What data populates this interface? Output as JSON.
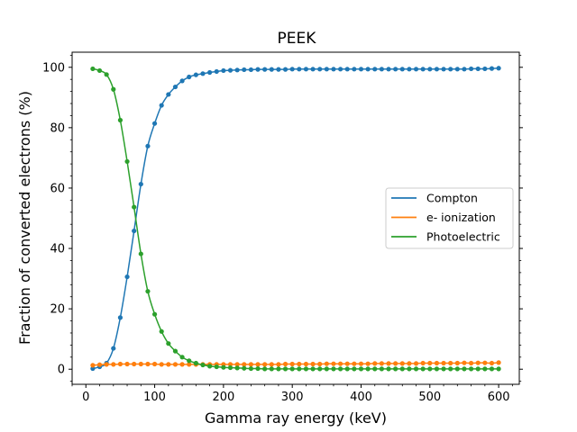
{
  "chart_data": {
    "type": "line",
    "title": "PEEK",
    "xlabel": "Gamma ray energy (keV)",
    "ylabel": "Fraction of converted electrons (%)",
    "xlim": [
      -20,
      630
    ],
    "ylim": [
      -5,
      105
    ],
    "xticks": [
      0,
      100,
      200,
      300,
      400,
      500,
      600
    ],
    "yticks": [
      0,
      20,
      40,
      60,
      80,
      100
    ],
    "grid": false,
    "legend_position": "center-right",
    "x": [
      10,
      20,
      30,
      40,
      50,
      60,
      70,
      80,
      90,
      100,
      110,
      120,
      130,
      140,
      150,
      160,
      170,
      180,
      190,
      200,
      210,
      220,
      230,
      240,
      250,
      260,
      270,
      280,
      290,
      300,
      310,
      320,
      330,
      340,
      350,
      360,
      370,
      380,
      390,
      400,
      410,
      420,
      430,
      440,
      450,
      460,
      470,
      480,
      490,
      500,
      510,
      520,
      530,
      540,
      550,
      560,
      570,
      580,
      590,
      600
    ],
    "series": [
      {
        "name": "Compton",
        "color": "#1f77b4",
        "values": [
          0.2,
          0.8,
          2.0,
          6.9,
          17.1,
          30.6,
          45.8,
          61.3,
          73.9,
          81.4,
          87.4,
          91.0,
          93.5,
          95.5,
          96.8,
          97.5,
          97.9,
          98.3,
          98.6,
          98.9,
          99.0,
          99.1,
          99.2,
          99.2,
          99.3,
          99.3,
          99.3,
          99.3,
          99.3,
          99.4,
          99.4,
          99.4,
          99.4,
          99.4,
          99.4,
          99.4,
          99.4,
          99.4,
          99.4,
          99.4,
          99.4,
          99.4,
          99.4,
          99.4,
          99.4,
          99.4,
          99.4,
          99.4,
          99.4,
          99.4,
          99.4,
          99.4,
          99.4,
          99.4,
          99.4,
          99.5,
          99.5,
          99.5,
          99.6,
          99.7
        ]
      },
      {
        "name": "e- ionization",
        "color": "#ff7f0e",
        "values": [
          1.3,
          1.5,
          1.6,
          1.6,
          1.7,
          1.7,
          1.7,
          1.7,
          1.7,
          1.7,
          1.6,
          1.6,
          1.6,
          1.6,
          1.6,
          1.6,
          1.6,
          1.6,
          1.6,
          1.6,
          1.6,
          1.6,
          1.6,
          1.6,
          1.6,
          1.6,
          1.6,
          1.6,
          1.7,
          1.7,
          1.7,
          1.7,
          1.7,
          1.7,
          1.8,
          1.8,
          1.8,
          1.8,
          1.8,
          1.8,
          1.8,
          1.9,
          1.9,
          1.9,
          1.9,
          1.9,
          1.9,
          1.9,
          2.0,
          2.0,
          2.0,
          2.0,
          2.0,
          2.0,
          2.1,
          2.0,
          2.1,
          2.1,
          2.0,
          2.2
        ]
      },
      {
        "name": "Photoelectric",
        "color": "#2ca02c",
        "values": [
          99.5,
          98.9,
          97.6,
          92.7,
          82.5,
          68.8,
          53.7,
          38.2,
          25.8,
          18.2,
          12.5,
          8.5,
          6.0,
          4.0,
          2.8,
          2.0,
          1.4,
          1.0,
          0.8,
          0.6,
          0.5,
          0.4,
          0.3,
          0.2,
          0.2,
          0.1,
          0.1,
          0.1,
          0.1,
          0.1,
          0.1,
          0.1,
          0.1,
          0.1,
          0.1,
          0.1,
          0.1,
          0.1,
          0.1,
          0.1,
          0.1,
          0.1,
          0.1,
          0.1,
          0.1,
          0.1,
          0.1,
          0.1,
          0.1,
          0.1,
          0.1,
          0.1,
          0.1,
          0.1,
          0.1,
          0.1,
          0.1,
          0.1,
          0.1,
          0.1
        ]
      }
    ]
  }
}
